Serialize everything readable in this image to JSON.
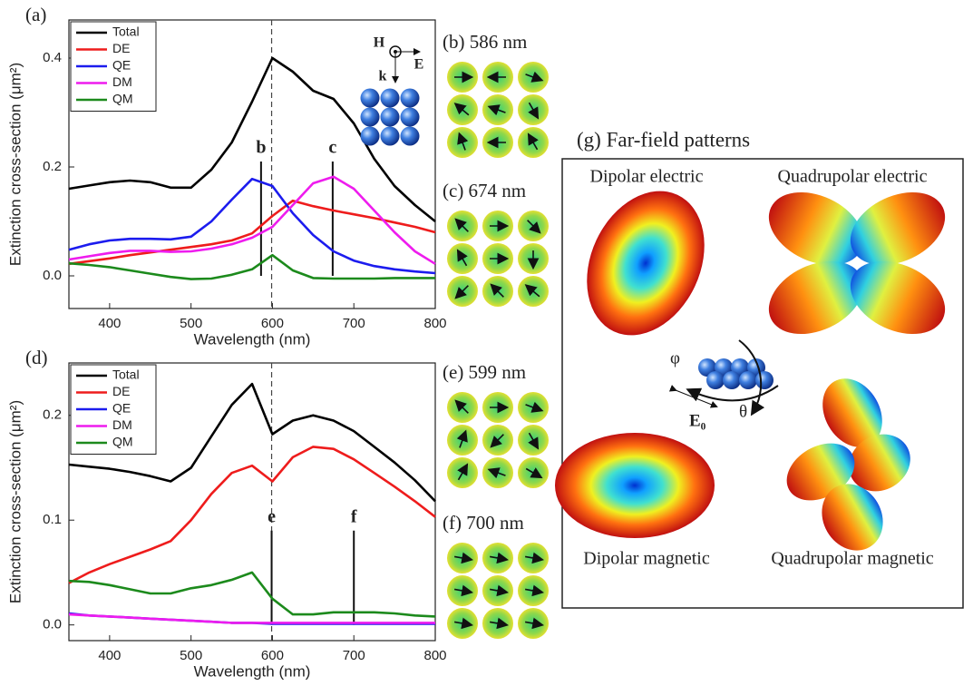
{
  "chart_data": [
    {
      "type": "line",
      "title": "(a)",
      "xlabel": "Wavelength (nm)",
      "ylabel": "Extinction cross-section (μm²)",
      "x": [
        350,
        375,
        400,
        425,
        450,
        475,
        500,
        525,
        550,
        575,
        600,
        625,
        650,
        675,
        700,
        725,
        750,
        775,
        800
      ],
      "series": [
        {
          "name": "Total",
          "color": "#000000",
          "values": [
            0.16,
            0.166,
            0.172,
            0.175,
            0.172,
            0.162,
            0.162,
            0.195,
            0.245,
            0.32,
            0.4,
            0.375,
            0.34,
            0.325,
            0.28,
            0.215,
            0.165,
            0.13,
            0.1
          ]
        },
        {
          "name": "DE",
          "color": "#ee1c1c",
          "values": [
            0.022,
            0.027,
            0.032,
            0.038,
            0.043,
            0.048,
            0.053,
            0.058,
            0.065,
            0.078,
            0.11,
            0.138,
            0.128,
            0.12,
            0.113,
            0.106,
            0.098,
            0.09,
            0.08
          ]
        },
        {
          "name": "QE",
          "color": "#1c1cee",
          "values": [
            0.048,
            0.058,
            0.065,
            0.068,
            0.068,
            0.067,
            0.072,
            0.1,
            0.14,
            0.178,
            0.165,
            0.115,
            0.075,
            0.045,
            0.028,
            0.018,
            0.012,
            0.008,
            0.005
          ]
        },
        {
          "name": "DM",
          "color": "#ee1cee",
          "values": [
            0.03,
            0.036,
            0.042,
            0.046,
            0.046,
            0.044,
            0.045,
            0.05,
            0.058,
            0.07,
            0.09,
            0.13,
            0.17,
            0.182,
            0.16,
            0.12,
            0.08,
            0.045,
            0.022
          ]
        },
        {
          "name": "QM",
          "color": "#1c8a1c",
          "values": [
            0.023,
            0.02,
            0.016,
            0.01,
            0.004,
            -0.002,
            -0.006,
            -0.005,
            0.002,
            0.012,
            0.038,
            0.01,
            -0.004,
            -0.005,
            -0.005,
            -0.005,
            -0.004,
            -0.004,
            -0.004
          ]
        }
      ],
      "xlim": [
        350,
        800
      ],
      "xticks": [
        400,
        500,
        600,
        700,
        800
      ],
      "ylim": [
        -0.06,
        0.47
      ],
      "yticks": [
        {
          "value": 0,
          "label": "0.0"
        },
        0.2,
        0.4
      ],
      "legend": "upper left",
      "dashed_x": 599,
      "annotations": [
        {
          "text": "b",
          "x": 586,
          "y": 0.21
        },
        {
          "text": "c",
          "x": 674,
          "y": 0.21
        }
      ],
      "inset_labels": [
        "H",
        "E",
        "k"
      ]
    },
    {
      "type": "line",
      "title": "(d)",
      "xlabel": "Wavelength (nm)",
      "ylabel": "Extinction cross-section (μm²)",
      "x": [
        350,
        375,
        400,
        425,
        450,
        475,
        500,
        525,
        550,
        575,
        600,
        625,
        650,
        675,
        700,
        725,
        750,
        775,
        800
      ],
      "series": [
        {
          "name": "Total",
          "color": "#000000",
          "values": [
            0.153,
            0.151,
            0.149,
            0.146,
            0.142,
            0.137,
            0.15,
            0.18,
            0.21,
            0.23,
            0.182,
            0.195,
            0.2,
            0.195,
            0.185,
            0.17,
            0.155,
            0.138,
            0.118
          ]
        },
        {
          "name": "DE",
          "color": "#ee1c1c",
          "values": [
            0.04,
            0.05,
            0.058,
            0.065,
            0.072,
            0.08,
            0.1,
            0.125,
            0.145,
            0.152,
            0.137,
            0.16,
            0.17,
            0.168,
            0.158,
            0.145,
            0.132,
            0.118,
            0.103
          ]
        },
        {
          "name": "QE",
          "color": "#1c1cee",
          "values": [
            0.011,
            0.009,
            0.008,
            0.007,
            0.006,
            0.005,
            0.004,
            0.003,
            0.002,
            0.002,
            0.001,
            0.001,
            0.001,
            0.001,
            0.001,
            0.001,
            0.001,
            0.001,
            0.001
          ]
        },
        {
          "name": "DM",
          "color": "#ee1cee",
          "values": [
            0.01,
            0.009,
            0.008,
            0.007,
            0.006,
            0.005,
            0.004,
            0.003,
            0.002,
            0.002,
            0.002,
            0.002,
            0.002,
            0.002,
            0.002,
            0.002,
            0.002,
            0.002,
            0.002
          ]
        },
        {
          "name": "QM",
          "color": "#1c8a1c",
          "values": [
            0.042,
            0.041,
            0.038,
            0.034,
            0.03,
            0.03,
            0.035,
            0.038,
            0.043,
            0.05,
            0.025,
            0.01,
            0.01,
            0.012,
            0.012,
            0.012,
            0.011,
            0.009,
            0.008
          ]
        }
      ],
      "xlim": [
        350,
        800
      ],
      "xticks": [
        400,
        500,
        600,
        700,
        800
      ],
      "ylim": [
        -0.015,
        0.25
      ],
      "yticks": [
        {
          "value": 0,
          "label": "0.0"
        },
        0.1,
        0.2
      ],
      "legend": "upper left",
      "dashed_x": 599,
      "annotations": [
        {
          "text": "e",
          "x": 599,
          "y": 0.09
        },
        {
          "text": "f",
          "x": 700,
          "y": 0.09
        }
      ]
    }
  ],
  "field_panels": [
    "(b) 586 nm",
    "(c) 674 nm",
    "(e) 599 nm",
    "(f) 700 nm"
  ],
  "far_field": {
    "title": "(g)  Far-field patterns",
    "labels": [
      "Dipolar electric",
      "Quadrupolar electric",
      "Dipolar magnetic",
      "Quadrupolar magnetic"
    ],
    "axis_labels": [
      "φ",
      "E₀",
      "θ"
    ]
  }
}
